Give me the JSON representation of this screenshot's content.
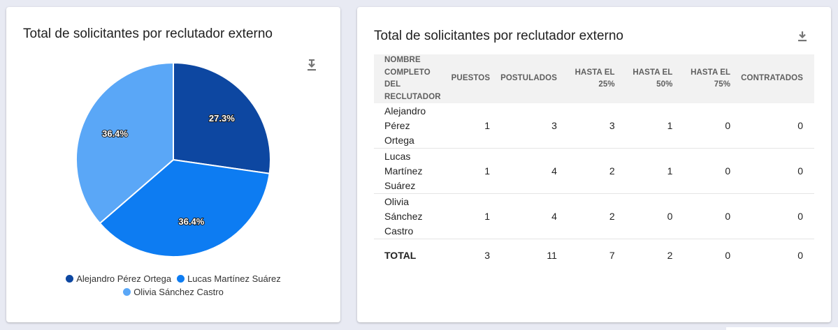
{
  "left_card": {
    "title": "Total de solicitantes por reclutador externo",
    "download_icon": "download-icon"
  },
  "right_card": {
    "title": "Total de solicitantes por reclutador externo",
    "download_icon": "download-icon"
  },
  "chart_data": {
    "type": "pie",
    "title": "Total de solicitantes por reclutador externo",
    "categories": [
      "Alejandro Pérez Ortega",
      "Lucas Martínez Suárez",
      "Olivia Sánchez Castro"
    ],
    "values": [
      3,
      4,
      4
    ],
    "labels": [
      "27.3%",
      "36.4%",
      "36.4%"
    ],
    "colors": [
      "#0d47a1",
      "#0d7cf2",
      "#5aa7f7"
    ],
    "legend_position": "bottom"
  },
  "table": {
    "headers": [
      "NOMBRE COMPLETO DEL RECLUTADOR",
      "PUESTOS",
      "POSTULADOS",
      "HASTA EL 25%",
      "HASTA EL 50%",
      "HASTA EL 75%",
      "CONTRATADOS"
    ],
    "rows": [
      [
        "Alejandro Pérez Ortega",
        "1",
        "3",
        "3",
        "1",
        "0",
        "0"
      ],
      [
        "Lucas Martínez Suárez",
        "1",
        "4",
        "2",
        "1",
        "0",
        "0"
      ],
      [
        "Olivia Sánchez Castro",
        "1",
        "4",
        "2",
        "0",
        "0",
        "0"
      ]
    ],
    "total": [
      "TOTAL",
      "3",
      "11",
      "7",
      "2",
      "0",
      "0"
    ]
  }
}
